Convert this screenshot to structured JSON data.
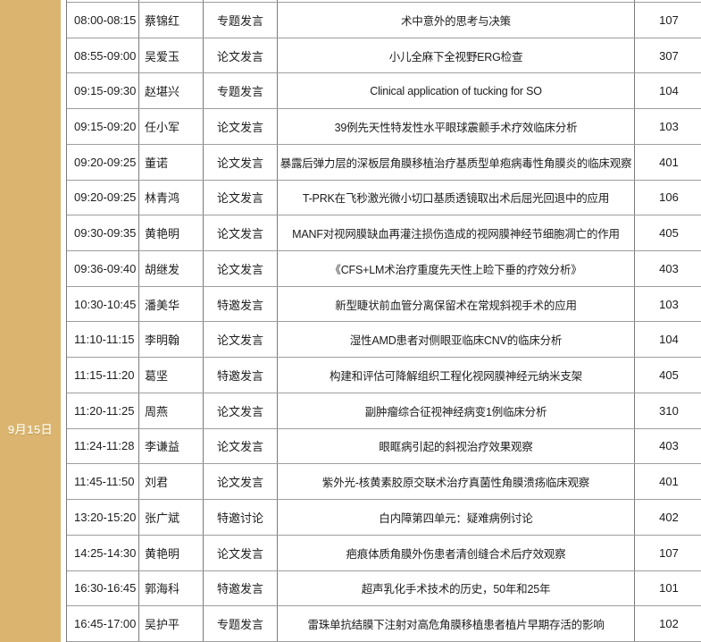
{
  "sidebar": {
    "date": "9月15日"
  },
  "colors": {
    "accent": "#DBB570",
    "date_text": "#FAF1DC",
    "vertical_border": "#7A7A7A",
    "horizontal_border": "#9E9E9E",
    "cell_text": "#1C1C1C",
    "background": "#FFFFFF"
  },
  "table": {
    "rows": [
      {
        "time": "08:00-08:15",
        "name": "蔡锦红",
        "type": "专题发言",
        "title": "术中意外的思考与决策",
        "room": "107"
      },
      {
        "time": "08:55-09:00",
        "name": "吴爱玉",
        "type": "论文发言",
        "title": "小儿全麻下全视野ERG检查",
        "room": "307"
      },
      {
        "time": "09:15-09:30",
        "name": "赵堪兴",
        "type": "专题发言",
        "title": "Clinical application of tucking for SO",
        "room": "104"
      },
      {
        "time": "09:15-09:20",
        "name": "任小军",
        "type": "论文发言",
        "title": "39例先天性特发性水平眼球震颤手术疗效临床分析",
        "room": "103"
      },
      {
        "time": "09:20-09:25",
        "name": "董诺",
        "type": "论文发言",
        "title": "暴露后弹力层的深板层角膜移植治疗基质型单疱病毒性角膜炎的临床观察",
        "room": "401"
      },
      {
        "time": "09:20-09:25",
        "name": "林青鸿",
        "type": "论文发言",
        "title": "T-PRK在飞秒激光微小切口基质透镜取出术后屈光回退中的应用",
        "room": "106"
      },
      {
        "time": "09:30-09:35",
        "name": "黄艳明",
        "type": "论文发言",
        "title": "MANF对视网膜缺血再灌注损伤造成的视网膜神经节细胞凋亡的作用",
        "room": "405"
      },
      {
        "time": "09:36-09:40",
        "name": "胡继发",
        "type": "论文发言",
        "title": "《CFS+LM术治疗重度先天性上睑下垂的疗效分析》",
        "room": "403"
      },
      {
        "time": "10:30-10:45",
        "name": "潘美华",
        "type": "特邀发言",
        "title": "新型睫状前血管分离保留术在常规斜视手术的应用",
        "room": "103"
      },
      {
        "time": "11:10-11:15",
        "name": "李明翰",
        "type": "论文发言",
        "title": "湿性AMD患者对侧眼亚临床CNV的临床分析",
        "room": "104"
      },
      {
        "time": "11:15-11:20",
        "name": "葛坚",
        "type": "特邀发言",
        "title": "构建和评估可降解组织工程化视网膜神经元纳米支架",
        "room": "405"
      },
      {
        "time": "11:20-11:25",
        "name": "周燕",
        "type": "论文发言",
        "title": "副肿瘤综合征视神经病变1例临床分析",
        "room": "310"
      },
      {
        "time": "11:24-11:28",
        "name": "李谦益",
        "type": "论文发言",
        "title": "眼眶病引起的斜视治疗效果观察",
        "room": "403"
      },
      {
        "time": "11:45-11:50",
        "name": "刘君",
        "type": "论文发言",
        "title": "紫外光-核黄素胶原交联术治疗真菌性角膜溃疡临床观察",
        "room": "401"
      },
      {
        "time": "13:20-15:20",
        "name": "张广斌",
        "type": "特邀讨论",
        "title": "白内障第四单元：疑难病例讨论",
        "room": "402"
      },
      {
        "time": "14:25-14:30",
        "name": "黄艳明",
        "type": "论文发言",
        "title": "疤痕体质角膜外伤患者清创缝合术后疗效观察",
        "room": "107"
      },
      {
        "time": "16:30-16:45",
        "name": "郭海科",
        "type": "特邀发言",
        "title": "超声乳化手术技术的历史，50年和25年",
        "room": "101"
      },
      {
        "time": "16:45-17:00",
        "name": "吴护平",
        "type": "专题发言",
        "title": "雷珠单抗结膜下注射对高危角膜移植患者植片早期存活的影响",
        "room": "102"
      }
    ]
  }
}
